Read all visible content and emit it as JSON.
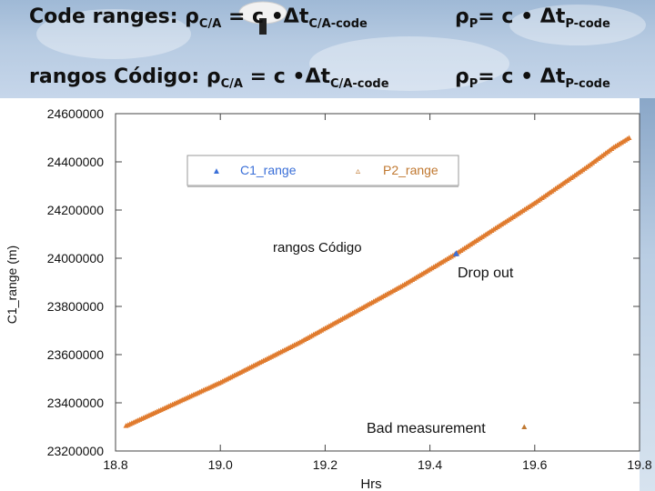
{
  "header": {
    "line1": {
      "lead": "Code ranges: ",
      "rho": "ρ",
      "sub_ca": "C/A",
      "mid": " = c •",
      "delta_t": "Δt",
      "sub_ca_code": "C/A-code",
      "rhs_rho": "ρ",
      "rhs_sub": "P",
      "rhs_mid": "= c • ",
      "rhs_delta_t": "Δt",
      "rhs_sub_code": "P-code"
    },
    "line2": {
      "lead": "rangos Código: ",
      "rho": "ρ",
      "sub_ca": "C/A",
      "mid": " = c •",
      "delta_t": "Δt",
      "sub_ca_code": "C/A-code",
      "rhs_rho": "ρ",
      "rhs_sub": "P",
      "rhs_mid": "= c • ",
      "rhs_delta_t": "Δt",
      "rhs_sub_code": "P-code"
    }
  },
  "chart_data": {
    "type": "scatter",
    "title": "",
    "xlabel": "Hrs",
    "ylabel": "C1_range (m)",
    "xlim": [
      18.8,
      19.8
    ],
    "ylim": [
      23200000,
      24600000
    ],
    "x_ticks": [
      18.8,
      19.0,
      19.2,
      19.4,
      19.6,
      19.8
    ],
    "x_tick_labels": [
      "18.8",
      "19.0",
      "19.2",
      "19.4",
      "19.6",
      "19.8"
    ],
    "y_ticks": [
      23200000,
      23400000,
      23600000,
      23800000,
      24000000,
      24200000,
      24400000,
      24600000
    ],
    "y_tick_labels": [
      "23200000",
      "23400000",
      "23600000",
      "23800000",
      "24000000",
      "24200000",
      "24400000",
      "24600000"
    ],
    "legend": {
      "placement": "top",
      "entries": [
        {
          "label": "C1_range",
          "symbol": "▲",
          "color": "#3a6fd8"
        },
        {
          "label": "P2_range",
          "symbol": "▵",
          "color": "#c07830"
        }
      ]
    },
    "series": [
      {
        "name": "P2_range",
        "color": "#e07b2e",
        "x": [
          18.82,
          18.85,
          18.9,
          18.95,
          19.0,
          19.05,
          19.1,
          19.15,
          19.2,
          19.25,
          19.3,
          19.35,
          19.4,
          19.45,
          19.5,
          19.55,
          19.6,
          19.65,
          19.7,
          19.75,
          19.78
        ],
        "y": [
          23305000,
          23335000,
          23385000,
          23435000,
          23485000,
          23540000,
          23595000,
          23650000,
          23710000,
          23770000,
          23830000,
          23890000,
          23955000,
          24020000,
          24090000,
          24160000,
          24230000,
          24305000,
          24380000,
          24460000,
          24500000
        ]
      },
      {
        "name": "C1_range",
        "color": "#3a6fd8",
        "x": [
          19.45
        ],
        "y": [
          24020000
        ]
      }
    ],
    "outliers": [
      {
        "name": "Bad measurement",
        "x": 19.58,
        "y": 23300000,
        "color": "#c07830"
      }
    ],
    "annotations": [
      {
        "text": "rangos Código"
      },
      {
        "text": "Drop out"
      },
      {
        "text": "Bad measurement"
      }
    ]
  }
}
